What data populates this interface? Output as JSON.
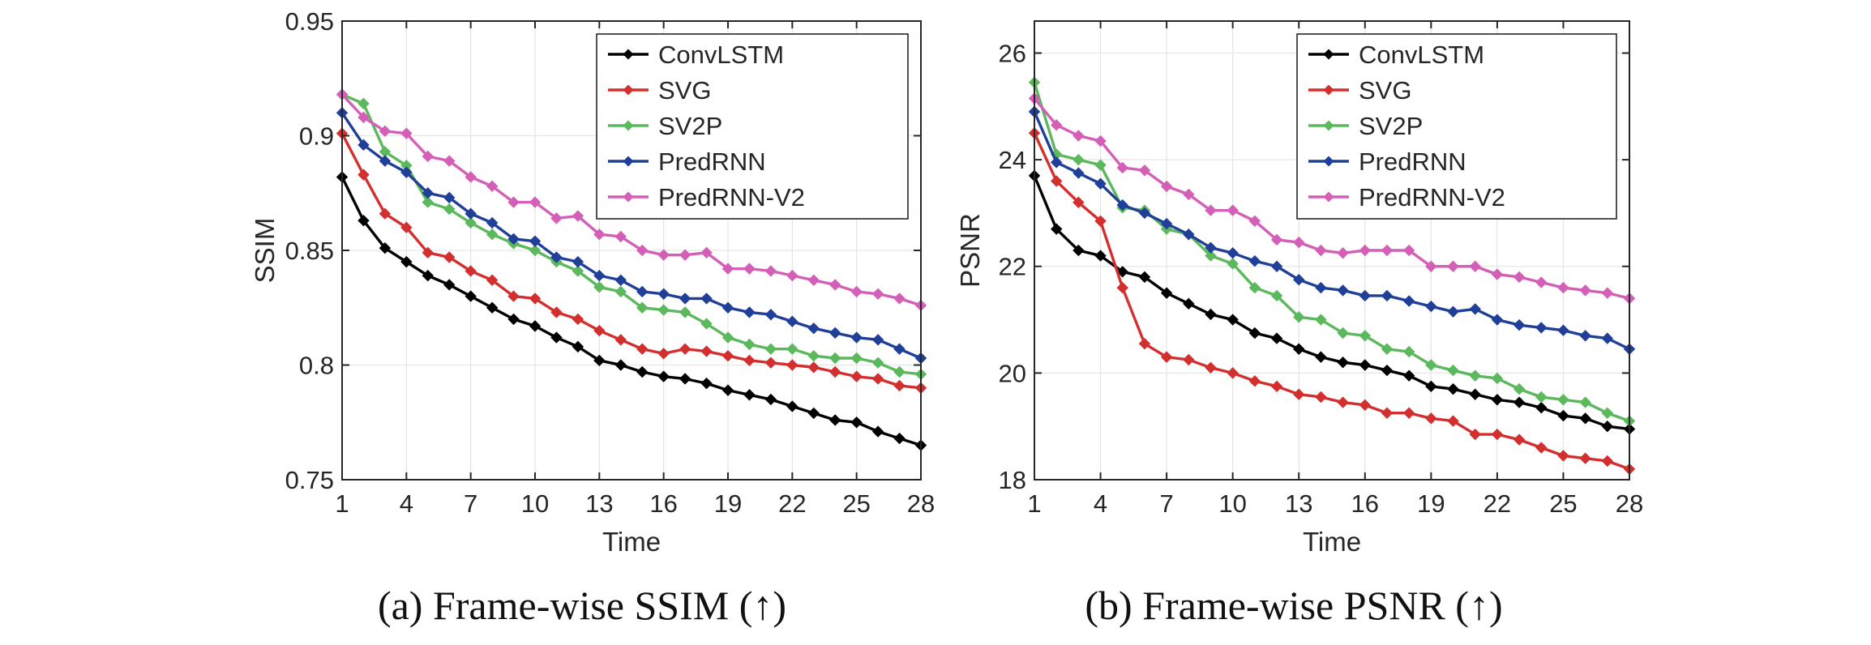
{
  "chart_data": [
    {
      "type": "line",
      "title": "",
      "caption": "(a) Frame-wise SSIM (↑)",
      "xlabel": "Time",
      "ylabel": "SSIM",
      "xlim": [
        1,
        28
      ],
      "ylim": [
        0.75,
        0.95
      ],
      "xticks": [
        1,
        4,
        7,
        10,
        13,
        16,
        19,
        22,
        25,
        28
      ],
      "yticks": [
        0.75,
        0.8,
        0.85,
        0.9,
        0.95
      ],
      "ytick_labels": [
        "0.75",
        "0.8",
        "0.85",
        "0.9",
        "0.95"
      ],
      "grid": true,
      "legend_position": "top-right",
      "marker": "diamond",
      "x": [
        1,
        2,
        3,
        4,
        5,
        6,
        7,
        8,
        9,
        10,
        11,
        12,
        13,
        14,
        15,
        16,
        17,
        18,
        19,
        20,
        21,
        22,
        23,
        24,
        25,
        26,
        27,
        28
      ],
      "series": [
        {
          "name": "ConvLSTM",
          "color": "#000000",
          "values": [
            0.882,
            0.863,
            0.851,
            0.845,
            0.839,
            0.835,
            0.83,
            0.825,
            0.82,
            0.817,
            0.812,
            0.808,
            0.802,
            0.8,
            0.797,
            0.795,
            0.794,
            0.792,
            0.789,
            0.787,
            0.785,
            0.782,
            0.779,
            0.776,
            0.775,
            0.771,
            0.768,
            0.765
          ]
        },
        {
          "name": "SVG",
          "color": "#d32f2f",
          "values": [
            0.901,
            0.883,
            0.866,
            0.86,
            0.849,
            0.847,
            0.841,
            0.837,
            0.83,
            0.829,
            0.823,
            0.82,
            0.815,
            0.811,
            0.807,
            0.805,
            0.807,
            0.806,
            0.804,
            0.802,
            0.801,
            0.8,
            0.799,
            0.797,
            0.795,
            0.794,
            0.791,
            0.79
          ]
        },
        {
          "name": "SV2P",
          "color": "#5cb85c",
          "values": [
            0.918,
            0.914,
            0.893,
            0.887,
            0.871,
            0.868,
            0.862,
            0.857,
            0.853,
            0.85,
            0.845,
            0.841,
            0.834,
            0.832,
            0.825,
            0.824,
            0.823,
            0.818,
            0.812,
            0.809,
            0.807,
            0.807,
            0.804,
            0.803,
            0.803,
            0.801,
            0.797,
            0.796
          ]
        },
        {
          "name": "PredRNN",
          "color": "#1f3f99",
          "values": [
            0.91,
            0.896,
            0.889,
            0.884,
            0.875,
            0.873,
            0.866,
            0.862,
            0.855,
            0.854,
            0.847,
            0.845,
            0.839,
            0.837,
            0.832,
            0.831,
            0.829,
            0.829,
            0.825,
            0.823,
            0.822,
            0.819,
            0.816,
            0.814,
            0.812,
            0.811,
            0.807,
            0.803
          ]
        },
        {
          "name": "PredRNN-V2",
          "color": "#d35fb7",
          "values": [
            0.918,
            0.908,
            0.902,
            0.901,
            0.891,
            0.889,
            0.882,
            0.878,
            0.871,
            0.871,
            0.864,
            0.865,
            0.857,
            0.856,
            0.85,
            0.848,
            0.848,
            0.849,
            0.842,
            0.842,
            0.841,
            0.839,
            0.837,
            0.835,
            0.832,
            0.831,
            0.829,
            0.826
          ]
        }
      ]
    },
    {
      "type": "line",
      "title": "",
      "caption": "(b) Frame-wise PSNR (↑)",
      "xlabel": "Time",
      "ylabel": "PSNR",
      "xlim": [
        1,
        28
      ],
      "ylim": [
        18,
        26.6
      ],
      "xticks": [
        1,
        4,
        7,
        10,
        13,
        16,
        19,
        22,
        25,
        28
      ],
      "yticks": [
        18,
        20,
        22,
        24,
        26
      ],
      "ytick_labels": [
        "18",
        "20",
        "22",
        "24",
        "26"
      ],
      "grid": true,
      "legend_position": "top-right",
      "marker": "diamond",
      "x": [
        1,
        2,
        3,
        4,
        5,
        6,
        7,
        8,
        9,
        10,
        11,
        12,
        13,
        14,
        15,
        16,
        17,
        18,
        19,
        20,
        21,
        22,
        23,
        24,
        25,
        26,
        27,
        28
      ],
      "series": [
        {
          "name": "ConvLSTM",
          "color": "#000000",
          "values": [
            23.7,
            22.7,
            22.3,
            22.2,
            21.9,
            21.8,
            21.5,
            21.3,
            21.1,
            21.0,
            20.75,
            20.65,
            20.45,
            20.3,
            20.2,
            20.15,
            20.05,
            19.95,
            19.75,
            19.7,
            19.6,
            19.5,
            19.45,
            19.35,
            19.2,
            19.15,
            19.0,
            18.95
          ]
        },
        {
          "name": "SVG",
          "color": "#d32f2f",
          "values": [
            24.5,
            23.6,
            23.2,
            22.85,
            21.6,
            20.55,
            20.3,
            20.25,
            20.1,
            20.0,
            19.85,
            19.75,
            19.6,
            19.55,
            19.45,
            19.4,
            19.25,
            19.25,
            19.15,
            19.1,
            18.85,
            18.85,
            18.75,
            18.6,
            18.45,
            18.4,
            18.35,
            18.2
          ]
        },
        {
          "name": "SV2P",
          "color": "#5cb85c",
          "values": [
            25.45,
            24.1,
            24.0,
            23.9,
            23.1,
            23.05,
            22.7,
            22.6,
            22.2,
            22.05,
            21.6,
            21.45,
            21.05,
            21.0,
            20.75,
            20.7,
            20.45,
            20.4,
            20.15,
            20.05,
            19.95,
            19.9,
            19.7,
            19.55,
            19.5,
            19.45,
            19.25,
            19.1
          ]
        },
        {
          "name": "PredRNN",
          "color": "#1f3f99",
          "values": [
            24.9,
            23.95,
            23.75,
            23.55,
            23.15,
            23.0,
            22.8,
            22.6,
            22.35,
            22.25,
            22.1,
            22.0,
            21.75,
            21.6,
            21.55,
            21.45,
            21.45,
            21.35,
            21.25,
            21.15,
            21.2,
            21.0,
            20.9,
            20.85,
            20.8,
            20.7,
            20.65,
            20.45
          ]
        },
        {
          "name": "PredRNN-V2",
          "color": "#d35fb7",
          "values": [
            25.15,
            24.65,
            24.45,
            24.35,
            23.85,
            23.8,
            23.5,
            23.35,
            23.05,
            23.05,
            22.85,
            22.5,
            22.45,
            22.3,
            22.25,
            22.3,
            22.3,
            22.3,
            22.0,
            22.0,
            22.0,
            21.85,
            21.8,
            21.7,
            21.6,
            21.55,
            21.5,
            21.4
          ]
        }
      ]
    }
  ]
}
